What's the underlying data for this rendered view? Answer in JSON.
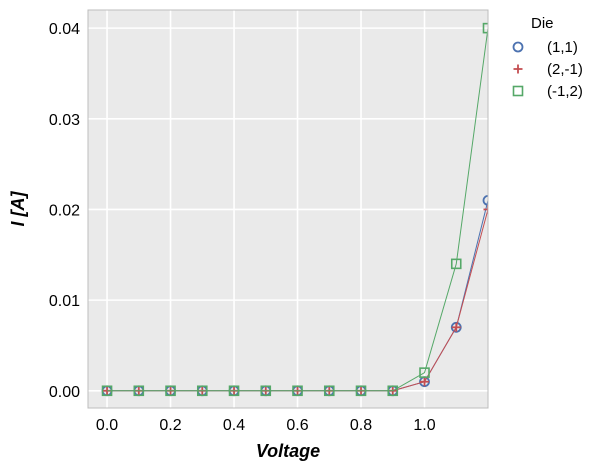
{
  "chart_data": {
    "type": "line",
    "xlabel": "Voltage",
    "ylabel": "I [A]",
    "xlim": [
      -0.06,
      1.2
    ],
    "ylim": [
      -0.0019,
      0.042
    ],
    "xticks": [
      "0.0",
      "0.2",
      "0.4",
      "0.6",
      "0.8",
      "1.0"
    ],
    "yticks": [
      "0.00",
      "0.01",
      "0.02",
      "0.03",
      "0.04"
    ],
    "grid": true,
    "legend": {
      "title": "Die",
      "position": "outside-top-right"
    },
    "x": [
      0.0,
      0.1,
      0.2,
      0.3,
      0.4,
      0.5,
      0.6,
      0.7,
      0.8,
      0.9,
      1.0,
      1.1,
      1.2
    ],
    "series": [
      {
        "name": "(1,1)",
        "marker": "circle",
        "color": "#4c72b0",
        "values": [
          0,
          0,
          0,
          0,
          0,
          0,
          0,
          0,
          0,
          0,
          0.001,
          0.007,
          0.021
        ]
      },
      {
        "name": "(2,-1)",
        "marker": "plus",
        "color": "#c44e52",
        "values": [
          0,
          0,
          0,
          0,
          0,
          0,
          0,
          0,
          0,
          0,
          0.001,
          0.007,
          0.02
        ]
      },
      {
        "name": "(-1,2)",
        "marker": "square",
        "color": "#55a868",
        "values": [
          0,
          0,
          0,
          0,
          0,
          0,
          0,
          0,
          0,
          0,
          0.002,
          0.014,
          0.04
        ]
      }
    ]
  }
}
